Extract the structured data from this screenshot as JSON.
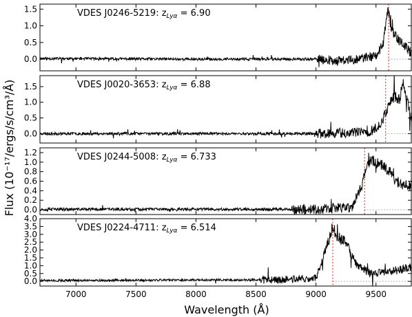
{
  "chart_data": {
    "type": "line",
    "xlabel": "Wavelength (Å)",
    "ylabel": "Flux (10⁻¹⁷/ergs/s/cm³/Å)",
    "xlim": [
      6700,
      9800
    ],
    "x_ticks": [
      7000,
      7500,
      8000,
      8500,
      9000,
      9500
    ],
    "x_tick_labels": [
      "7000",
      "7500",
      "8000",
      "8500",
      "9000",
      "9500"
    ],
    "zero_line": {
      "style": "dotted",
      "color": "#999999"
    },
    "panels": [
      {
        "object": "VDES J0246-5219",
        "label": "VDES J0246-5219: z",
        "z_subscript": "Lyα",
        "z_value": "= 6.90",
        "ylim": [
          -0.35,
          1.65
        ],
        "yticks": [
          0.0,
          0.5,
          1.0,
          1.5
        ],
        "ytick_labels": [
          "0.0",
          "0.5",
          "1.0",
          "1.5"
        ],
        "lya_wavelength": 9605,
        "noise": 0.04,
        "seed": 11,
        "curve": [
          [
            6700,
            0.02
          ],
          [
            8000,
            0.0
          ],
          [
            9000,
            0.0
          ],
          [
            9200,
            -0.05
          ],
          [
            9350,
            0.0
          ],
          [
            9500,
            0.1
          ],
          [
            9560,
            0.45
          ],
          [
            9600,
            1.5
          ],
          [
            9630,
            0.9
          ],
          [
            9660,
            0.7
          ],
          [
            9700,
            0.55
          ],
          [
            9760,
            0.3
          ],
          [
            9800,
            0.2
          ]
        ]
      },
      {
        "object": "VDES J0020-3653",
        "label": "VDES J0020-3653: z",
        "z_subscript": "Lyα",
        "z_value": "= 6.88",
        "ylim": [
          -0.3,
          1.85
        ],
        "yticks": [
          0.0,
          0.5,
          1.0,
          1.5
        ],
        "ytick_labels": [
          "0.0",
          "0.5",
          "1.0",
          "1.5"
        ],
        "lya_wavelength": 9580,
        "noise": 0.045,
        "seed": 23,
        "curve": [
          [
            6700,
            0.0
          ],
          [
            8000,
            0.0
          ],
          [
            9000,
            0.0
          ],
          [
            9450,
            0.05
          ],
          [
            9550,
            0.35
          ],
          [
            9600,
            0.9
          ],
          [
            9650,
            1.2
          ],
          [
            9700,
            1.1
          ],
          [
            9720,
            1.7
          ],
          [
            9750,
            1.2
          ],
          [
            9800,
            0.4
          ]
        ]
      },
      {
        "object": "VDES J0244-5008",
        "label": "VDES J0244-5008: z",
        "z_subscript": "Lyα",
        "z_value": "= 6.733",
        "ylim": [
          -0.1,
          1.3
        ],
        "yticks": [
          0.0,
          0.2,
          0.4,
          0.6,
          0.8,
          1.0,
          1.2
        ],
        "ytick_labels": [
          "0.0",
          "0.2",
          "0.4",
          "0.6",
          "0.8",
          "1.0",
          "1.2"
        ],
        "lya_wavelength": 9405,
        "noise": 0.03,
        "seed": 37,
        "curve": [
          [
            6700,
            0.01
          ],
          [
            9000,
            0.01
          ],
          [
            9300,
            0.05
          ],
          [
            9380,
            0.5
          ],
          [
            9420,
            0.9
          ],
          [
            9450,
            1.05
          ],
          [
            9550,
            0.95
          ],
          [
            9620,
            0.8
          ],
          [
            9650,
            0.65
          ],
          [
            9700,
            0.55
          ],
          [
            9800,
            0.5
          ]
        ]
      },
      {
        "object": "VDES J0224-4711",
        "label": "VDES J0224-4711: z",
        "z_subscript": "Lyα",
        "z_value": "= 6.514",
        "ylim": [
          -0.3,
          4.0
        ],
        "yticks": [
          0.0,
          0.5,
          1.0,
          1.5,
          2.0,
          2.5,
          3.0,
          3.5,
          4.0
        ],
        "ytick_labels": [
          "0.0",
          "0.5",
          "1.0",
          "1.5",
          "2.0",
          "2.5",
          "3.0",
          "3.5",
          "4.0"
        ],
        "lya_wavelength": 9140,
        "noise": 0.07,
        "seed": 51,
        "curve": [
          [
            6700,
            0.05
          ],
          [
            8700,
            0.1
          ],
          [
            9000,
            0.2
          ],
          [
            9060,
            1.5
          ],
          [
            9100,
            2.5
          ],
          [
            9140,
            3.5
          ],
          [
            9180,
            2.8
          ],
          [
            9250,
            2.5
          ],
          [
            9300,
            1.6
          ],
          [
            9350,
            1.0
          ],
          [
            9450,
            0.5
          ],
          [
            9600,
            0.6
          ],
          [
            9800,
            0.9
          ]
        ]
      }
    ]
  }
}
